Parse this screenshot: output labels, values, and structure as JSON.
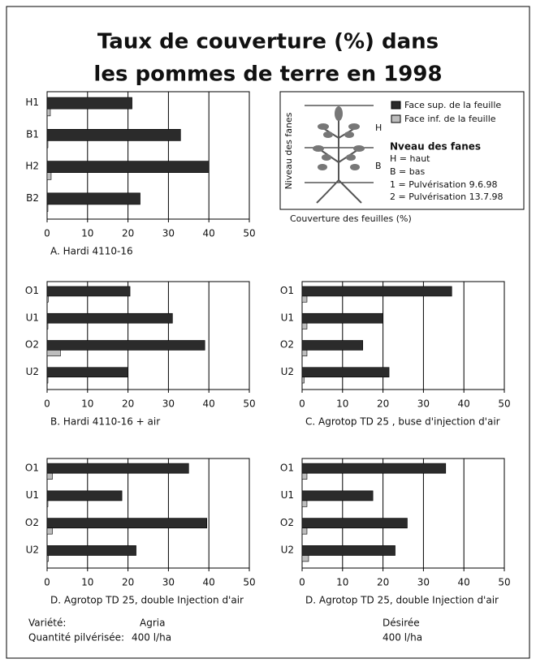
{
  "title": [
    "Taux de couverture (%) dans",
    "les pommes de terre en 1998"
  ],
  "legend": {
    "axis_label": "Niveau des fanes",
    "levels": [
      "H",
      "B"
    ],
    "heading": "Nveau des fanes",
    "items": [
      "H = haut",
      "B = bas",
      "1 = Pulvérisation 9.6.98",
      "2 = Pulvérisation 13.7.98"
    ],
    "xlabel": "Couverture des feuilles (%)"
  },
  "chart_data": [
    {
      "type": "bar",
      "caption": "A. Hardi 4110-16",
      "categories": [
        "H1",
        "B1",
        "H2",
        "B2"
      ],
      "series": [
        {
          "name": "Face sup. de la feuille",
          "color": "#2b2b2b",
          "values": [
            21,
            33,
            40,
            23
          ]
        },
        {
          "name": "Face inf. de la feuille",
          "color": "#bdbdbd",
          "values": [
            0.8,
            0.2,
            1,
            0.2
          ]
        }
      ],
      "xlim": [
        0,
        50
      ],
      "xticks": [
        0,
        10,
        20,
        30,
        40,
        50
      ],
      "grid": true
    },
    {
      "type": "bar",
      "caption": "B. Hardi 4110-16 + air",
      "categories": [
        "O1",
        "U1",
        "O2",
        "U2"
      ],
      "series": [
        {
          "color": "#2b2b2b",
          "values": [
            20.5,
            31,
            39,
            20
          ]
        },
        {
          "color": "#bdbdbd",
          "values": [
            0.3,
            0.2,
            3.3,
            0.2
          ]
        }
      ],
      "xlim": [
        0,
        50
      ],
      "xticks": [
        0,
        10,
        20,
        30,
        40,
        50
      ],
      "grid": true
    },
    {
      "type": "bar",
      "caption": "C. Agrotop TD 25 , buse d'injection d'air",
      "categories": [
        "O1",
        "U1",
        "O2",
        "U2"
      ],
      "series": [
        {
          "color": "#2b2b2b",
          "values": [
            37,
            20,
            15,
            21.5
          ]
        },
        {
          "color": "#bdbdbd",
          "values": [
            1.2,
            1.2,
            1.2,
            0.5
          ]
        }
      ],
      "xlim": [
        0,
        50
      ],
      "xticks": [
        0,
        10,
        20,
        30,
        40,
        50
      ],
      "grid": true
    },
    {
      "type": "bar",
      "caption": "D. Agrotop TD 25, double Injection d'air",
      "categories": [
        "O1",
        "U1",
        "O2",
        "U2"
      ],
      "series": [
        {
          "color": "#2b2b2b",
          "values": [
            35,
            18.5,
            39.5,
            22
          ]
        },
        {
          "color": "#bdbdbd",
          "values": [
            1.3,
            0.2,
            1.3,
            0.3
          ]
        }
      ],
      "xlim": [
        0,
        50
      ],
      "xticks": [
        0,
        10,
        20,
        30,
        40,
        50
      ],
      "grid": true
    },
    {
      "type": "bar",
      "caption": "D. Agrotop TD 25, double Injection d'air",
      "categories": [
        "O1",
        "U1",
        "O2",
        "U2"
      ],
      "series": [
        {
          "color": "#2b2b2b",
          "values": [
            35.5,
            17.5,
            26,
            23
          ]
        },
        {
          "color": "#bdbdbd",
          "values": [
            1.2,
            1.2,
            1.2,
            1.6
          ]
        }
      ],
      "xlim": [
        0,
        50
      ],
      "xticks": [
        0,
        10,
        20,
        30,
        40,
        50
      ],
      "grid": true
    }
  ],
  "footer": {
    "rows": [
      [
        "Variété:",
        "Agria",
        "Désirée"
      ],
      [
        "Quantité pilvérisée:",
        "400 l/ha",
        "400 l/ha"
      ]
    ]
  }
}
